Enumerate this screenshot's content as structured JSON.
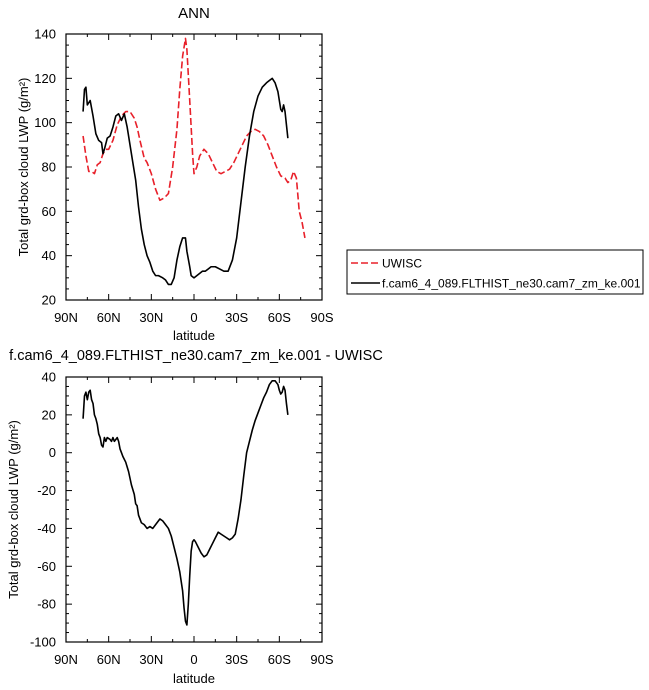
{
  "chart_data": [
    {
      "type": "line",
      "title": "ANN",
      "xlabel": "latitude",
      "ylabel": "Total grd-box cloud LWP (g/m²)",
      "xlim": [
        -90,
        90
      ],
      "ylim": [
        20,
        140
      ],
      "xticks": [
        -90,
        -60,
        -30,
        0,
        30,
        60,
        90
      ],
      "xticklabels": [
        "90N",
        "60N",
        "30N",
        "0",
        "30S",
        "60S",
        "90S"
      ],
      "yticks": [
        20,
        40,
        60,
        80,
        100,
        120,
        140
      ],
      "yticklabels": [
        "20",
        "40",
        "60",
        "80",
        "100",
        "120",
        "140"
      ],
      "grid": false,
      "legend": "right",
      "series": [
        {
          "name": "UWISC",
          "color": "#e8202a",
          "dash": "dashed",
          "points": [
            [
              -78,
              94
            ],
            [
              -76,
              85
            ],
            [
              -74,
              78
            ],
            [
              -72,
              78
            ],
            [
              -70,
              77
            ],
            [
              -68,
              81
            ],
            [
              -66,
              82
            ],
            [
              -64,
              86
            ],
            [
              -62,
              88
            ],
            [
              -60,
              88
            ],
            [
              -57,
              92
            ],
            [
              -54,
              99
            ],
            [
              -51,
              103
            ],
            [
              -48,
              105
            ],
            [
              -45,
              105
            ],
            [
              -42,
              102
            ],
            [
              -40,
              98
            ],
            [
              -38,
              92
            ],
            [
              -35,
              84
            ],
            [
              -33,
              82
            ],
            [
              -30,
              77
            ],
            [
              -27,
              70
            ],
            [
              -24,
              65
            ],
            [
              -21,
              66
            ],
            [
              -18,
              68
            ],
            [
              -15,
              80
            ],
            [
              -12,
              97
            ],
            [
              -10,
              115
            ],
            [
              -8,
              130
            ],
            [
              -6,
              138
            ],
            [
              -5,
              133
            ],
            [
              -3,
              110
            ],
            [
              -1,
              86
            ],
            [
              0,
              77
            ],
            [
              2,
              80
            ],
            [
              4,
              85
            ],
            [
              7,
              88
            ],
            [
              10,
              86
            ],
            [
              13,
              82
            ],
            [
              16,
              78
            ],
            [
              19,
              77
            ],
            [
              22,
              78
            ],
            [
              25,
              79
            ],
            [
              28,
              82
            ],
            [
              31,
              86
            ],
            [
              34,
              90
            ],
            [
              37,
              94
            ],
            [
              40,
              96
            ],
            [
              43,
              97
            ],
            [
              46,
              96
            ],
            [
              49,
              94
            ],
            [
              52,
              90
            ],
            [
              55,
              85
            ],
            [
              58,
              80
            ],
            [
              61,
              76
            ],
            [
              64,
              75
            ],
            [
              66,
              73
            ],
            [
              68,
              74
            ],
            [
              70,
              78
            ],
            [
              72,
              75
            ],
            [
              74,
              60
            ],
            [
              76,
              55
            ],
            [
              78,
              48
            ]
          ]
        },
        {
          "name": "f.cam6_4_089.FLTHIST_ne30.cam7_zm_ke.001",
          "color": "#000000",
          "dash": "solid",
          "points": [
            [
              -78,
              105
            ],
            [
              -77,
              115
            ],
            [
              -76,
              116
            ],
            [
              -75,
              108
            ],
            [
              -73,
              110
            ],
            [
              -71,
              103
            ],
            [
              -69,
              95
            ],
            [
              -67,
              92
            ],
            [
              -65,
              91
            ],
            [
              -64,
              86
            ],
            [
              -63,
              88
            ],
            [
              -61,
              93
            ],
            [
              -59,
              94
            ],
            [
              -57,
              98
            ],
            [
              -55,
              103
            ],
            [
              -53,
              104
            ],
            [
              -51,
              101
            ],
            [
              -49,
              104
            ],
            [
              -47,
              98
            ],
            [
              -45,
              90
            ],
            [
              -43,
              82
            ],
            [
              -41,
              74
            ],
            [
              -39,
              62
            ],
            [
              -37,
              52
            ],
            [
              -35,
              45
            ],
            [
              -33,
              40
            ],
            [
              -31,
              37
            ],
            [
              -29,
              33
            ],
            [
              -27,
              31
            ],
            [
              -25,
              31
            ],
            [
              -22,
              30
            ],
            [
              -20,
              29
            ],
            [
              -18,
              27
            ],
            [
              -16,
              27
            ],
            [
              -14,
              30
            ],
            [
              -12,
              38
            ],
            [
              -10,
              44
            ],
            [
              -8,
              48
            ],
            [
              -6,
              48
            ],
            [
              -5,
              42
            ],
            [
              -3,
              35
            ],
            [
              -2,
              31
            ],
            [
              0,
              30
            ],
            [
              2,
              31
            ],
            [
              4,
              32
            ],
            [
              6,
              33
            ],
            [
              8,
              33
            ],
            [
              10,
              34
            ],
            [
              12,
              35
            ],
            [
              15,
              35
            ],
            [
              18,
              34
            ],
            [
              21,
              33
            ],
            [
              24,
              33
            ],
            [
              27,
              38
            ],
            [
              30,
              48
            ],
            [
              33,
              64
            ],
            [
              36,
              80
            ],
            [
              39,
              94
            ],
            [
              42,
              105
            ],
            [
              45,
              112
            ],
            [
              48,
              116
            ],
            [
              51,
              118
            ],
            [
              53,
              119
            ],
            [
              55,
              120
            ],
            [
              57,
              118
            ],
            [
              59,
              114
            ],
            [
              60,
              110
            ],
            [
              61,
              106
            ],
            [
              62,
              105
            ],
            [
              63,
              108
            ],
            [
              64,
              105
            ],
            [
              66,
              93
            ]
          ]
        }
      ]
    },
    {
      "type": "line",
      "title": "f.cam6_4_089.FLTHIST_ne30.cam7_zm_ke.001 - UWISC",
      "xlabel": "latitude",
      "ylabel": "Total grd-box cloud LWP (g/m²)",
      "xlim": [
        -90,
        90
      ],
      "ylim": [
        -100,
        40
      ],
      "xticks": [
        -90,
        -60,
        -30,
        0,
        30,
        60,
        90
      ],
      "xticklabels": [
        "90N",
        "60N",
        "30N",
        "0",
        "30S",
        "60S",
        "90S"
      ],
      "yticks": [
        -100,
        -80,
        -60,
        -40,
        -20,
        0,
        20,
        40
      ],
      "yticklabels": [
        "-100",
        "-80",
        "-60",
        "-40",
        "-20",
        "0",
        "20",
        "40"
      ],
      "grid": false,
      "series": [
        {
          "name": "",
          "color": "#000000",
          "dash": "solid",
          "points": [
            [
              -78,
              18
            ],
            [
              -77,
              30
            ],
            [
              -76,
              32
            ],
            [
              -75,
              28
            ],
            [
              -74,
              32
            ],
            [
              -73,
              33
            ],
            [
              -72,
              28
            ],
            [
              -71,
              26
            ],
            [
              -70,
              20
            ],
            [
              -69,
              18
            ],
            [
              -68,
              15
            ],
            [
              -67,
              10
            ],
            [
              -66,
              8
            ],
            [
              -65,
              4
            ],
            [
              -64,
              3
            ],
            [
              -63,
              8
            ],
            [
              -62,
              6
            ],
            [
              -61,
              8
            ],
            [
              -59,
              7
            ],
            [
              -58,
              6
            ],
            [
              -57,
              8
            ],
            [
              -56,
              6
            ],
            [
              -55,
              7
            ],
            [
              -54,
              8
            ],
            [
              -53,
              6
            ],
            [
              -52,
              2
            ],
            [
              -51,
              0
            ],
            [
              -50,
              -2
            ],
            [
              -48,
              -5
            ],
            [
              -46,
              -10
            ],
            [
              -44,
              -17
            ],
            [
              -42,
              -22
            ],
            [
              -41,
              -27
            ],
            [
              -40,
              -28
            ],
            [
              -39,
              -33
            ],
            [
              -38,
              -35
            ],
            [
              -37,
              -37
            ],
            [
              -35,
              -38
            ],
            [
              -33,
              -40
            ],
            [
              -31,
              -39
            ],
            [
              -29,
              -40
            ],
            [
              -27,
              -38
            ],
            [
              -25,
              -36
            ],
            [
              -24,
              -35
            ],
            [
              -22,
              -36
            ],
            [
              -20,
              -38
            ],
            [
              -18,
              -40
            ],
            [
              -16,
              -44
            ],
            [
              -14,
              -50
            ],
            [
              -12,
              -56
            ],
            [
              -10,
              -63
            ],
            [
              -8,
              -73
            ],
            [
              -7,
              -82
            ],
            [
              -6,
              -89
            ],
            [
              -5,
              -91
            ],
            [
              -4,
              -80
            ],
            [
              -3,
              -65
            ],
            [
              -2,
              -52
            ],
            [
              -1,
              -47
            ],
            [
              0,
              -46
            ],
            [
              1,
              -47
            ],
            [
              3,
              -50
            ],
            [
              5,
              -53
            ],
            [
              7,
              -55
            ],
            [
              9,
              -54
            ],
            [
              11,
              -51
            ],
            [
              13,
              -48
            ],
            [
              15,
              -45
            ],
            [
              17,
              -42
            ],
            [
              19,
              -43
            ],
            [
              21,
              -44
            ],
            [
              23,
              -45
            ],
            [
              25,
              -46
            ],
            [
              27,
              -45
            ],
            [
              29,
              -43
            ],
            [
              31,
              -35
            ],
            [
              33,
              -25
            ],
            [
              35,
              -12
            ],
            [
              37,
              0
            ],
            [
              39,
              6
            ],
            [
              41,
              12
            ],
            [
              43,
              17
            ],
            [
              45,
              21
            ],
            [
              47,
              25
            ],
            [
              49,
              29
            ],
            [
              51,
              32
            ],
            [
              53,
              36
            ],
            [
              55,
              38
            ],
            [
              57,
              38
            ],
            [
              59,
              36
            ],
            [
              60,
              33
            ],
            [
              61,
              31
            ],
            [
              62,
              32
            ],
            [
              63,
              35
            ],
            [
              64,
              33
            ],
            [
              65,
              26
            ],
            [
              66,
              20
            ]
          ]
        }
      ]
    }
  ]
}
